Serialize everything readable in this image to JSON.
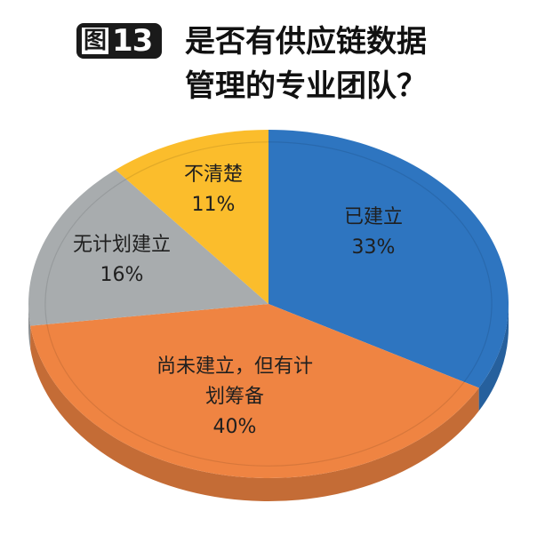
{
  "title": {
    "figure_prefix": "图",
    "figure_number": "13",
    "line1": "是否有供应链数据",
    "line2": "管理的专业团队？"
  },
  "chart_data": {
    "type": "pie",
    "title": "图13 是否有供应链数据管理的专业团队？",
    "style": "3d",
    "categories": [
      "已建立",
      "尚未建立，但有计划筹备",
      "无计划建立",
      "不清楚"
    ],
    "values": [
      33,
      40,
      16,
      11
    ],
    "unit": "%",
    "colors": [
      "#2e75c0",
      "#ef8442",
      "#a8acae",
      "#fbbd2c"
    ],
    "legend": "none (data labels on slices)"
  },
  "labels": {
    "established": {
      "name": "已建立",
      "pct": "33%"
    },
    "planned": {
      "name_line1": "尚未建立，但有计",
      "name_line2": "划筹备",
      "pct": "40%"
    },
    "no_plan": {
      "name": "无计划建立",
      "pct": "16%"
    },
    "unknown": {
      "name": "不清楚",
      "pct": "11%"
    }
  }
}
